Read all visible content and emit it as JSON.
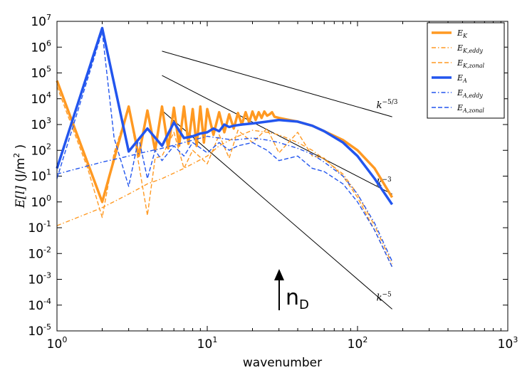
{
  "chart_data": {
    "type": "line",
    "title": "",
    "xlabel": "wavenumber",
    "ylabel": "E[l] (J/m²)",
    "xscale": "log",
    "yscale": "log",
    "xlim": [
      1,
      1000
    ],
    "ylim": [
      1e-05,
      10000000.0
    ],
    "x_ticks": [
      {
        "base": "10",
        "exp": "0"
      },
      {
        "base": "10",
        "exp": "1"
      },
      {
        "base": "10",
        "exp": "2"
      },
      {
        "base": "10",
        "exp": "3"
      }
    ],
    "y_ticks": [
      {
        "base": "10",
        "exp": "-5"
      },
      {
        "base": "10",
        "exp": "-4"
      },
      {
        "base": "10",
        "exp": "-3"
      },
      {
        "base": "10",
        "exp": "-2"
      },
      {
        "base": "10",
        "exp": "-1"
      },
      {
        "base": "10",
        "exp": "0"
      },
      {
        "base": "10",
        "exp": "1"
      },
      {
        "base": "10",
        "exp": "2"
      },
      {
        "base": "10",
        "exp": "3"
      },
      {
        "base": "10",
        "exp": "4"
      },
      {
        "base": "10",
        "exp": "5"
      },
      {
        "base": "10",
        "exp": "6"
      },
      {
        "base": "10",
        "exp": "7"
      }
    ],
    "ylabel_parts": {
      "math": "E[l]",
      "unit_open": " (J/m",
      "unit_sup": "2",
      "unit_close": " )"
    },
    "series": [
      {
        "name": "E_K",
        "label_main": "E",
        "label_sub": "K",
        "color": "#ff9922",
        "style": "solid",
        "width": 3.5,
        "x": [
          1,
          2,
          3,
          3.5,
          4,
          4.5,
          5,
          5.5,
          6,
          6.5,
          7,
          7.5,
          8,
          8.5,
          9,
          9.5,
          10,
          11,
          12,
          13,
          14,
          15,
          16,
          17,
          18,
          19,
          20,
          21,
          22,
          23,
          24,
          25,
          26,
          27,
          28,
          30,
          35,
          40,
          50,
          60,
          80,
          100,
          130,
          170
        ],
        "y": [
          50000,
          1,
          5000,
          60,
          3500,
          100,
          5000,
          120,
          4500,
          150,
          5000,
          180,
          4000,
          150,
          5000,
          200,
          4000,
          400,
          3000,
          500,
          2500,
          700,
          2800,
          1000,
          3000,
          1200,
          3200,
          1500,
          3000,
          1800,
          3200,
          2200,
          2500,
          3000,
          2000,
          1800,
          1500,
          1300,
          900,
          550,
          250,
          100,
          20,
          1.5
        ]
      },
      {
        "name": "E_K,eddy",
        "label_main": "E",
        "label_sub": "K,eddy",
        "color": "#ff9922",
        "style": "dashdot",
        "width": 1.4,
        "x": [
          1,
          2,
          3,
          4,
          5,
          7,
          10,
          12,
          15,
          20,
          25,
          30,
          40,
          50,
          60,
          80,
          100,
          130,
          170
        ],
        "y": [
          0.12,
          0.6,
          2,
          5,
          8,
          20,
          60,
          150,
          300,
          600,
          500,
          400,
          200,
          100,
          45,
          12,
          2,
          0.12,
          0.004
        ]
      },
      {
        "name": "E_K,zonal",
        "label_main": "E",
        "label_sub": "K,zonal",
        "color": "#ff9922",
        "style": "dashed",
        "width": 1.4,
        "x": [
          1,
          1.6,
          2,
          2.4,
          3,
          3.5,
          4,
          4.5,
          5,
          6,
          7,
          8,
          10,
          12,
          14,
          16,
          20,
          25,
          30,
          40,
          50,
          60,
          80,
          100,
          130,
          170
        ],
        "y": [
          30000,
          20,
          0.25,
          80,
          5000,
          30,
          0.3,
          50,
          60,
          500,
          20,
          100,
          30,
          400,
          50,
          600,
          200,
          700,
          80,
          500,
          60,
          50,
          10,
          1.5,
          0.08,
          0.003
        ]
      },
      {
        "name": "E_A",
        "label_main": "E",
        "label_sub": "A",
        "color": "#2255ee",
        "style": "solid",
        "width": 3.5,
        "x": [
          1,
          2,
          3,
          4,
          5,
          6,
          7,
          8,
          9,
          10,
          11,
          12,
          13,
          14,
          15,
          17,
          20,
          25,
          30,
          40,
          50,
          60,
          80,
          100,
          130,
          170
        ],
        "y": [
          20,
          5500000,
          90,
          700,
          150,
          1200,
          300,
          350,
          450,
          500,
          700,
          550,
          1000,
          800,
          900,
          1000,
          1100,
          1300,
          1500,
          1300,
          900,
          550,
          200,
          60,
          8,
          0.8
        ]
      },
      {
        "name": "E_A,eddy",
        "label_main": "E",
        "label_sub": "A,eddy",
        "color": "#2255ee",
        "style": "dashdot",
        "width": 1.4,
        "x": [
          1,
          2,
          3,
          4,
          5,
          7,
          10,
          12,
          15,
          20,
          25,
          30,
          40,
          50,
          60,
          80,
          100,
          130,
          170
        ],
        "y": [
          12,
          35,
          60,
          90,
          120,
          200,
          350,
          300,
          250,
          300,
          250,
          200,
          120,
          70,
          35,
          10,
          2,
          0.15,
          0.005
        ]
      },
      {
        "name": "E_A,zonal",
        "label_main": "E",
        "label_sub": "A,zonal",
        "color": "#2255ee",
        "style": "dashed",
        "width": 1.4,
        "x": [
          1,
          2,
          2.4,
          3,
          3.5,
          4,
          4.5,
          5,
          6,
          7,
          8,
          10,
          12,
          14,
          16,
          20,
          25,
          30,
          40,
          50,
          60,
          80,
          100,
          130,
          170
        ],
        "y": [
          8,
          4000000,
          300,
          4,
          300,
          8,
          100,
          40,
          150,
          60,
          200,
          80,
          200,
          100,
          150,
          200,
          100,
          40,
          60,
          20,
          15,
          5,
          1,
          0.08,
          0.003
        ]
      }
    ],
    "reference_lines": [
      {
        "name": "slope-5/3",
        "label": "k",
        "exponent": "−5/3",
        "x": [
          5,
          170
        ],
        "y": [
          700000,
          2000
        ]
      },
      {
        "name": "slope-3",
        "label": "k",
        "exponent": "−3",
        "x": [
          5,
          170
        ],
        "y": [
          80000,
          2
        ]
      },
      {
        "name": "slope-5",
        "label": "k",
        "exponent": "−5",
        "x": [
          5,
          170
        ],
        "y": [
          3500,
          7e-05
        ]
      }
    ],
    "legend": "top-right",
    "annotation": {
      "text_main": "n",
      "text_sub": "D",
      "arrow": "up"
    }
  }
}
